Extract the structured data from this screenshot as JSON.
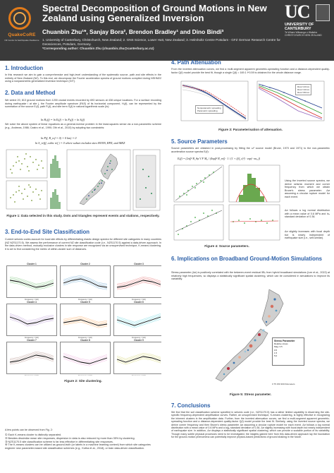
{
  "header": {
    "logo_left": "QuakeCoRE",
    "logo_left_sub": "NZ Centre for Earthquake Resilience",
    "title": "Spectral Decomposition of Ground Motions in New Zealand using Generalized Inversion",
    "authors": "Chuanbin Zhu¹*, Sanjay Bora², Brendon Bradley¹ and Dino Bindi³",
    "affil1": "1. University of Canterbury, Christchurch, New Zealand; 2. GNS Science, Lower Hutt, New Zealand; 3. Helmholtz Centre Potsdam - GFZ German Research Centre for Geosciences, Potsdam, Germany.",
    "affil2": "*Corresponding author: Chuanbin Zhu (chuanbin.zhu@canterbury.ac.nz)",
    "logo_right_a": "UC",
    "logo_right_b": "UNIVERSITY OF CANTERBURY",
    "logo_right_c": "Te Whare Wānanga o Waitaha",
    "logo_right_d": "CHRISTCHURCH NEW ZEALAND"
  },
  "sec1": {
    "title": "1. Introduction",
    "text": "In this research we aim to gain a comprehensive and high-level understanding of the systematic source, path and site effects in the entirety of New Zealand (NZ). To this end, we decompose the Fourier acceleration spectra of ground motions compiled during NSHM22 using a nonparametric generalized inversion technique (GIT)."
  },
  "sec2": {
    "title": "2. Data and Method",
    "text1": "We select 20, 813 ground motions from 1200 crustal events recorded by 693 sensors at 438 unique locations. For a surface recording during earthquake i at site j, the Fourier amplitude spectrum (FAS) of its horizontal component, Hᵢⱼ(f), can be represented by the summation of the source Eᵢ(f), path Pᵢⱼ(f), and site term Sⱼ(f) in natural logarithmic scale (ln):",
    "eq1": "ln Hᵢⱼ(f) = ln Eᵢ(f) + ln Pᵢⱼ(f) + ln Sⱼ(f)",
    "text2": "We solve the above system of linear equations as a general-inverse problem in the least-squares sense via a non-parametric scheme (e.g., Andrews, 1986; Castro et al., 1990; Oth et al., 2010) by adopting two constraints:",
    "eq2": "ln P(f, R_ref = 0) = 0 km) = 0",
    "eq3": "ln S_ref(f, cubic ref ) = 0 where subset includes sites HONS, RPZ, and MKZ",
    "caption": "Figure 1: Data selected in this study. Dots and triangles represent events and stations, respectively."
  },
  "sec3": {
    "title": "3. End-to-End Site Classification",
    "text": "Current seismic codes account for local site effects by differentiating elastic design spectra for different site categories in many countries (NZ NZS1170.5). We assess the performance of current NZ site classification code (i.e., NZS1170.5) against a data-driven approach. In the data-driven method, mutually exclusive clusters in site response are recognized via an unsupervised technique, K-means clustering. It is set to find considering the metric of within-cluster sum of distances.",
    "clusters": [
      "Cluster 1",
      "Cluster 2",
      "Cluster 3",
      "Cluster 4",
      "Cluster 5",
      "Cluster 6",
      "Cluster 7",
      "Cluster 8",
      "Cluster 9"
    ],
    "xlabel": "Frequency, f (Hz)",
    "caption": "Figure 2: Site clustering.",
    "points_intro": "A few points can be observed from Fig. 2:",
    "bullets": [
      "Each K-means cluster is distinctly separated.",
      "Besides dissimilar mean site responses, dispersion in data is also reduced by more than 35% by clustering.",
      "NZS1170.5 site classification scheme is far less effective in differentiating site responses.",
      "The K-means clusters can be utilized as ground-truth (or labels in a machine learning context) from which site categories engineer new parameter-based site classification schemes (e.g., Kotha et al., 2018), or train data-driven classification."
    ]
  },
  "sec4": {
    "title": "4. Path Attenuation",
    "text": "From the inverted attenuation curves, we find a multi-segment apparent geometric-spreading function and a distance-dependent quality-factor Q(f) model provide the best fit, though a single Q(f) = 169.1 f^0.59 is obtained for the whole distance range.",
    "legend": [
      "Nonparametric spreading",
      "Parametric spreading",
      "Rcorr=20 km",
      "Rcorr=40 km",
      "Rcorr=80 km"
    ],
    "caption": "Figure 3: Parameterisation of attenuation."
  },
  "sec5": {
    "title": "5. Source Parameters",
    "text": "Source parameters are obtained in post-processing by fitting the ω² source model (Brune, 1970 and 1971) to the non-parametric acceleration source spectra Eᵢ(f):",
    "eq": "Eᵢ(f) = (2πf)² R_θφ V F M₀ / (4πρβ³ R_ref) · 1 / (1 + (f/f_c)²) · exp(−πκ₀ f)",
    "side_text1": "Using the inverted source spectra, we derive seismic moment and corner frequency from which we obtain Brune's stress parameter. Δσ assuming a circular rupture model for each event.",
    "side_text2": "Δσ follows a log normal distribution with a mean value of 0.6 MPa and lnₑ standard deviation of 0.36.",
    "side_text3": "Δσ slightly increases with focal depth but is nearly independent of earthquake size (i.e., self-similar).",
    "caption": "Figure 4: Source parameters."
  },
  "sec6": {
    "title": "6. Implications on Broadband Ground-Motion Simulations",
    "text": "Stress parameter (Δσ) is positively correlated with the between-event residual δBₑ from hybrid broadband simulations (Lee et al., 2022) at relatively high frequencies, so displays a statistically significant spatial clustering, which can be considered in simulations to improve its variability.",
    "map_legend_title": "Stress Parameter",
    "map_legend_items": [
      "Relative stress",
      "Mag: 3.5",
      "0.5",
      "1.5",
      "5.0"
    ],
    "scale_label": "0 75 150 300 Kilometers",
    "caption": "Figure 5: Stress parameter."
  },
  "sec7": {
    "title": "7. Conclusions",
    "text": "We find that the soil classification scheme specified in seismic code (i.e., NZS1170.5) has a rather limited capability in discerning the site-specific frequency-dependent amplification curves. Rather, an unsupervised technique, K-means clustering, is highly effective in recognizing the inherent clusters in the amplification data. Further, from the inverted attenuation curves, we find a multi-segment apparent geometric-spreading function and a distance-dependent quality-factor Q(f) model provide the best fit. Similarly, using the inverted source spectra, we derive corner frequency and then Brune's stress parameter Δσ assuming a circular rupture model for each event. Δσ follows a log normal distribution with a mean value of 0.6 MPa and a logₑ standard deviation of 0.36. Δσ slightly increasing with focal depth but nearly independent of earthquake size. In addition, Δσ displays a statistically significant spatial clustering, which can provide a scalable portion of its variability. Though many subtle physical processes need to be investigated, the insights gained here from this data-driven approach lay the foundation for the ground-motion phenomena can potentially improve physics-based predictions of ground shaking in the future."
  }
}
